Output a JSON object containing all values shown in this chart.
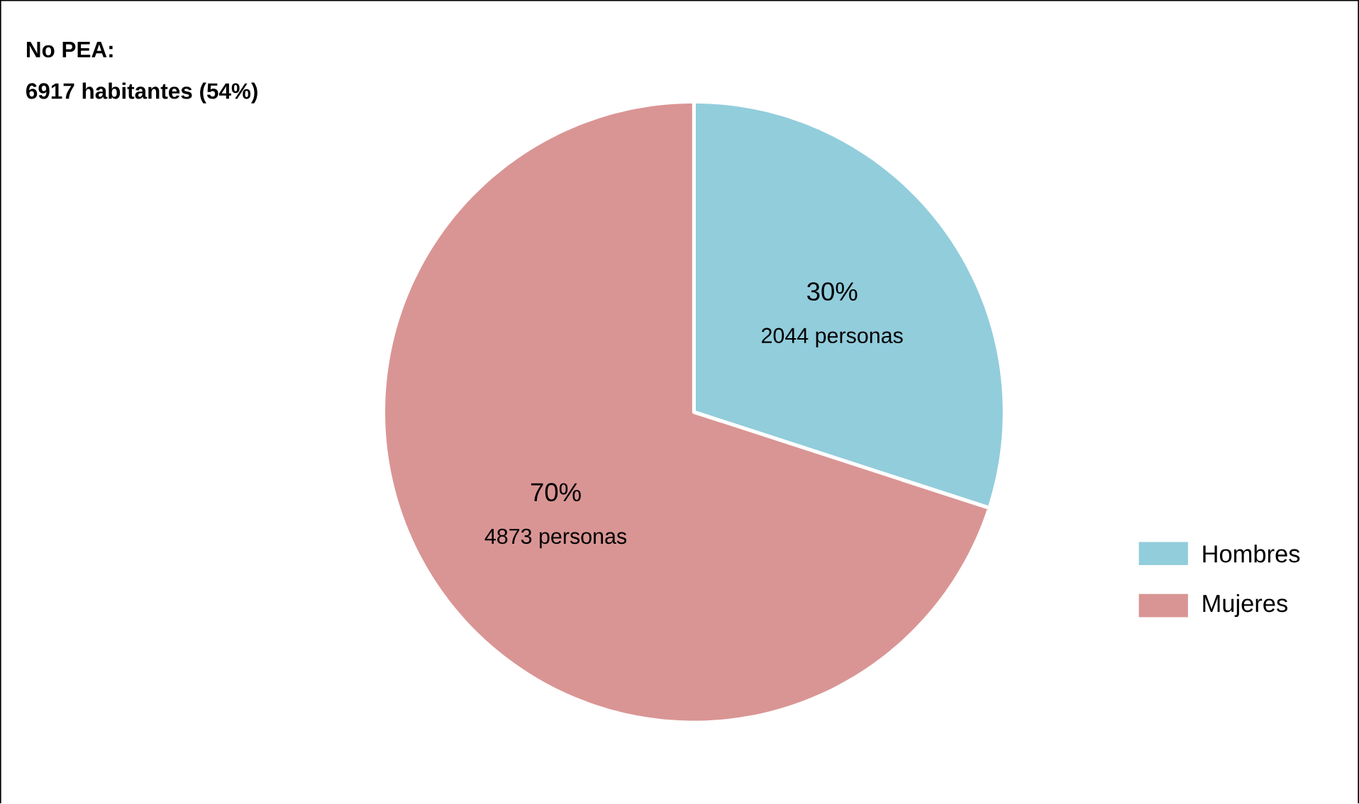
{
  "chart_data": {
    "type": "pie",
    "title": "No PEA:",
    "subtitle": "6917 habitantes (54%)",
    "categories": [
      "Hombres",
      "Mujeres"
    ],
    "values": [
      30,
      70
    ],
    "colors": [
      "#92cddc",
      "#d99594"
    ],
    "value_labels": [
      "30%",
      "70%"
    ],
    "annotations": [
      "2044 personas",
      "4873 personas"
    ],
    "legend": "right"
  }
}
